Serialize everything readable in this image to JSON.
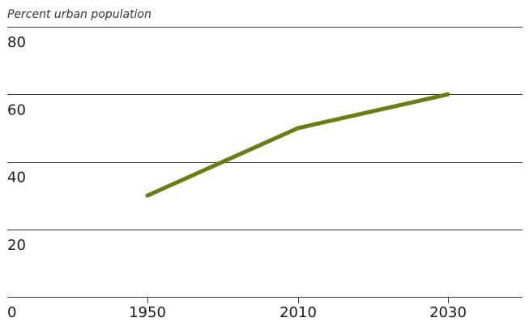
{
  "chart_data": {
    "type": "line",
    "title": "",
    "xlabel": "",
    "ylabel": "Percent urban population",
    "ylim": [
      0,
      80
    ],
    "grid": true,
    "y_ticks": [
      "0",
      "20",
      "40",
      "60",
      "80"
    ],
    "x": [
      "1950",
      "2010",
      "2030"
    ],
    "series": [
      {
        "values": [
          30,
          50,
          60
        ],
        "color": "#6b7d12"
      }
    ]
  }
}
